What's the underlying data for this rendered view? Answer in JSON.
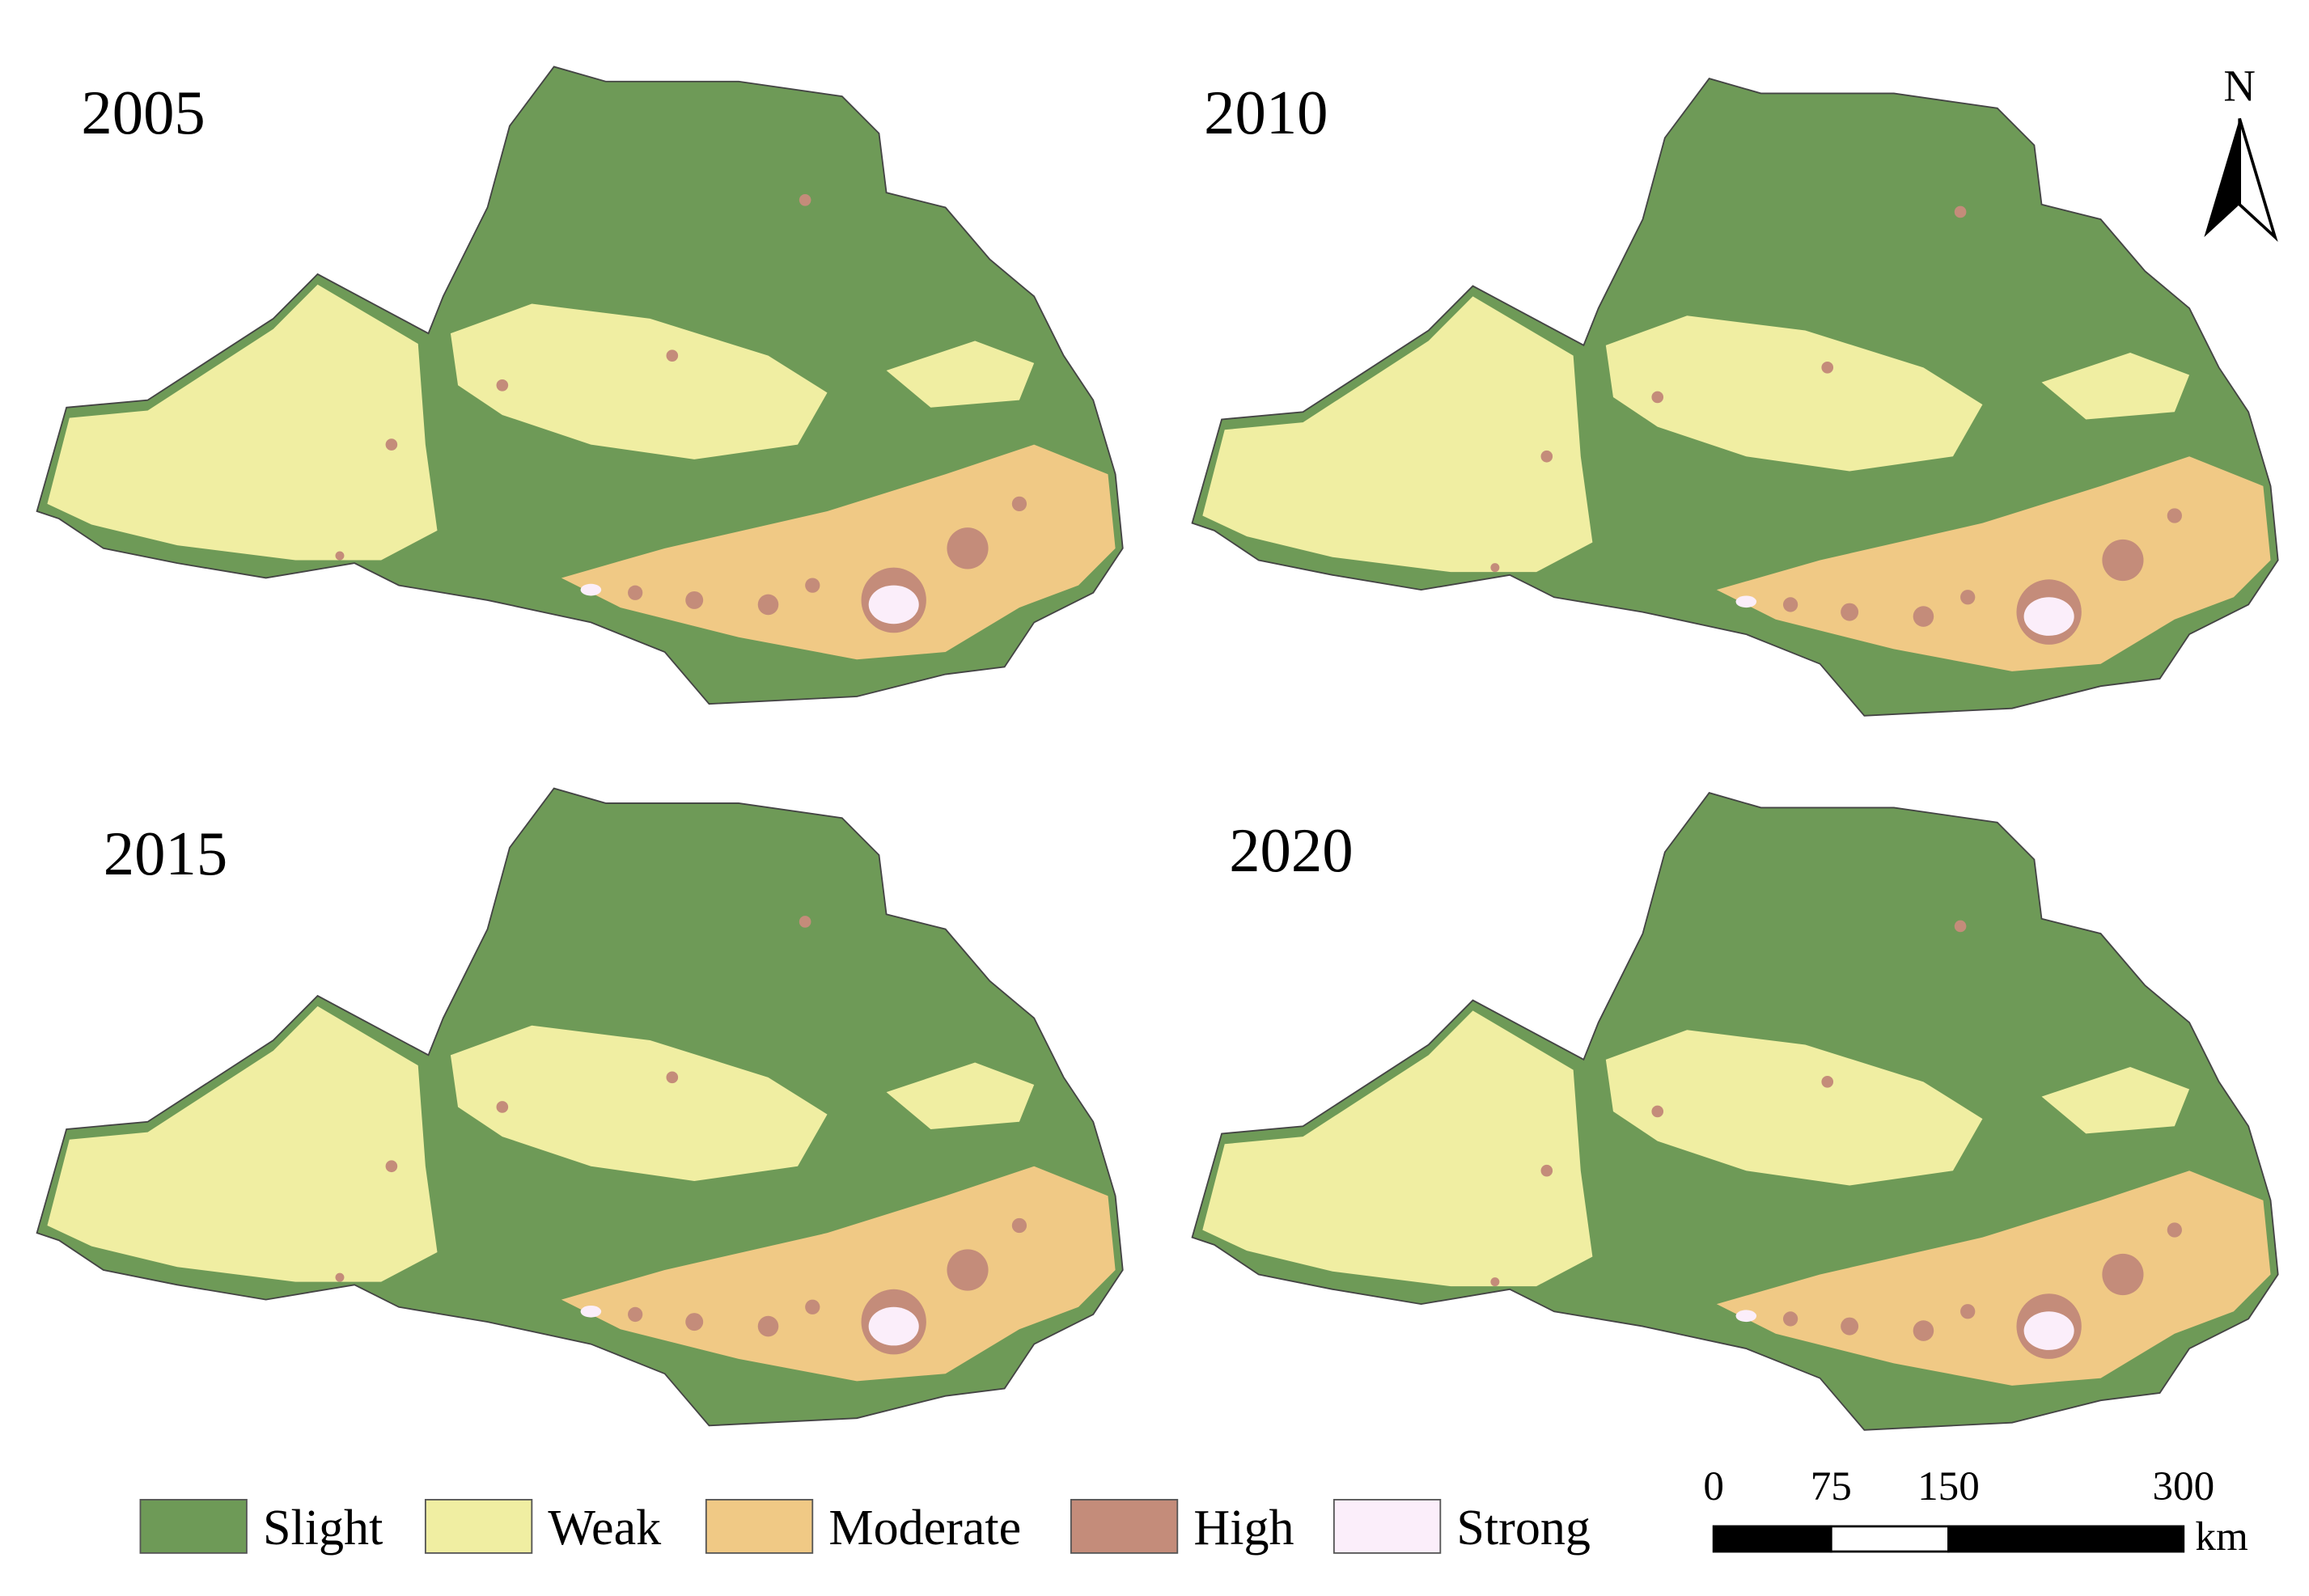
{
  "panels": [
    {
      "year": "2005"
    },
    {
      "year": "2010"
    },
    {
      "year": "2015"
    },
    {
      "year": "2020"
    }
  ],
  "legend": [
    {
      "label": "Slight",
      "color": "#6e9a57"
    },
    {
      "label": "Weak",
      "color": "#f0eea2"
    },
    {
      "label": "Moderate",
      "color": "#f0c985"
    },
    {
      "label": "High",
      "color": "#c48c7a"
    },
    {
      "label": "Strong",
      "color": "#fbeefa"
    }
  ],
  "north": "N",
  "scale": {
    "ticks": [
      0,
      75,
      150,
      300
    ],
    "unit": "km"
  }
}
